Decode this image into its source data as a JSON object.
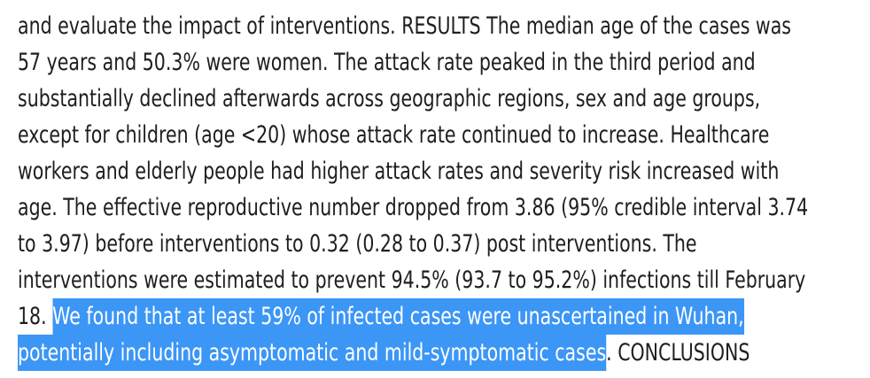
{
  "colors": {
    "background": "#ffffff",
    "text": "#1e1e21",
    "highlight": "#3b96f6",
    "highlight_text": "#ffffff"
  },
  "abstract": {
    "lines": [
      {
        "pre": "and evaluate the impact of interventions. RESULTS The median age of the cases was"
      },
      {
        "pre": "57 years and 50.3% were women. The attack rate peaked in the third period and"
      },
      {
        "pre": "substantially declined afterwards across geographic regions, sex and age groups,"
      },
      {
        "pre": "except for children (age <20) whose attack rate continued to increase. Healthcare"
      },
      {
        "pre": "workers and elderly people had higher attack rates and severity risk increased with"
      },
      {
        "pre": "age. The effective reproductive number dropped from 3.86 (95% credible interval 3.74"
      },
      {
        "pre": "to 3.97) before interventions to 0.32 (0.28 to 0.37) post interventions. The"
      },
      {
        "pre": "interventions were estimated to prevent 94.5% (93.7 to 95.2%) infections till February"
      },
      {
        "pre": "18. ",
        "highlight": "We found that at least 59% of infected cases were unascertained in Wuhan,"
      },
      {
        "highlight": "potentially including asymptomatic and mild-symptomatic cases",
        "post": ". CONCLUSIONS"
      }
    ],
    "selected_text": "We found that at least 59% of infected cases were unascertained in Wuhan, potentially including asymptomatic and mild-symptomatic cases"
  }
}
